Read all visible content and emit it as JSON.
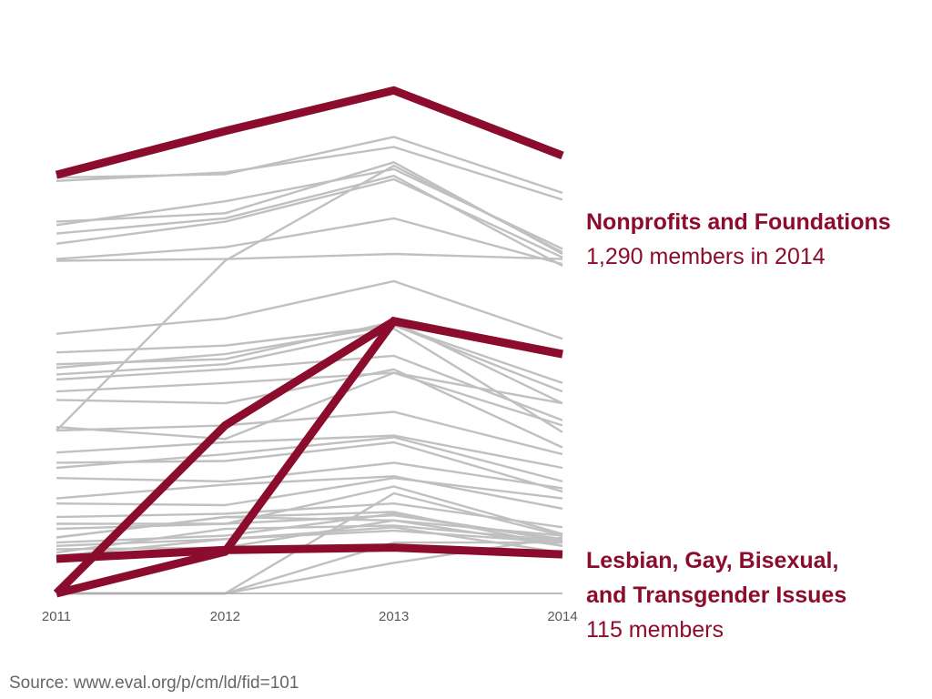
{
  "chart_data": {
    "type": "line",
    "x": [
      2011,
      2012,
      2013,
      2014
    ],
    "xlabel": "",
    "ylabel": "",
    "ylim": [
      0,
      1480
    ],
    "grid": false,
    "legend": "none",
    "colors": {
      "highlight": "#8c0c2e",
      "background_series": "#c0c0c0",
      "axis": "#a6a6a6"
    },
    "highlighted_series": [
      {
        "name": "Nonprofits and Foundations",
        "values": [
          1233,
          1362,
          1482,
          1290
        ]
      },
      {
        "name": "Lesbian, Gay, Bisexual, and Transgender Issues",
        "values": [
          102,
          128,
          135,
          115
        ]
      },
      {
        "values": [
          0,
          123,
          802,
          705
        ]
      },
      {
        "values": [
          0,
          495,
          802,
          705
        ]
      }
    ],
    "background_series": [
      [
        1225,
        1235,
        1345,
        1180
      ],
      [
        1215,
        1240,
        1315,
        1160
      ],
      [
        1085,
        1155,
        1250,
        1015
      ],
      [
        1060,
        1105,
        1230,
        965
      ],
      [
        1030,
        1095,
        1220,
        990
      ],
      [
        1095,
        1120,
        1270,
        1000
      ],
      [
        985,
        1020,
        1105,
        970
      ],
      [
        980,
        985,
        1000,
        985
      ],
      [
        765,
        810,
        920,
        750
      ],
      [
        710,
        730,
        790,
        620
      ],
      [
        675,
        690,
        800,
        560
      ],
      [
        665,
        705,
        790,
        595
      ],
      [
        645,
        675,
        780,
        475
      ],
      [
        630,
        660,
        700,
        510
      ],
      [
        595,
        620,
        650,
        560
      ],
      [
        570,
        560,
        660,
        430
      ],
      [
        490,
        455,
        650,
        495
      ],
      [
        480,
        495,
        535,
        410
      ],
      [
        415,
        445,
        465,
        370
      ],
      [
        385,
        390,
        445,
        300
      ],
      [
        370,
        410,
        460,
        330
      ],
      [
        340,
        330,
        385,
        310
      ],
      [
        280,
        320,
        345,
        250
      ],
      [
        265,
        260,
        340,
        280
      ],
      [
        225,
        235,
        265,
        195
      ],
      [
        190,
        205,
        230,
        160
      ],
      [
        205,
        205,
        315,
        175
      ],
      [
        165,
        225,
        215,
        170
      ],
      [
        150,
        170,
        235,
        155
      ],
      [
        140,
        160,
        185,
        150
      ],
      [
        120,
        190,
        200,
        155
      ],
      [
        165,
        225,
        240,
        140
      ],
      [
        130,
        135,
        215,
        140
      ],
      [
        110,
        160,
        195,
        120
      ],
      [
        0,
        0,
        295,
        170
      ],
      [
        0,
        0,
        90,
        165
      ],
      [
        0,
        0,
        150,
        150
      ],
      [
        480,
        980,
        1260,
        1005
      ]
    ]
  },
  "labels": {
    "top_title": "Nonprofits and Foundations",
    "top_sub": "1,290 members in 2014",
    "bottom_title_line1": "Lesbian, Gay, Bisexual,",
    "bottom_title_line2": "and Transgender Issues",
    "bottom_sub": "115 members",
    "source": "Source: www.eval.org/p/cm/ld/fid=101"
  }
}
